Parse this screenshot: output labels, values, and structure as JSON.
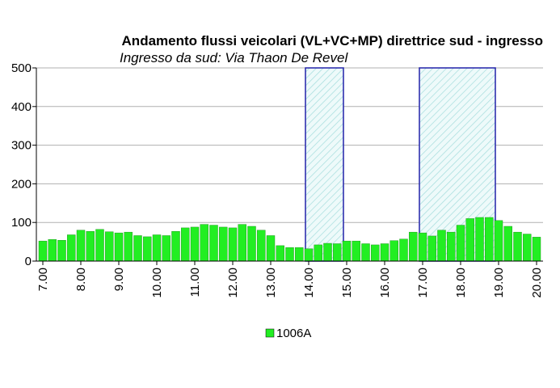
{
  "chart_data": {
    "type": "bar",
    "title": "Andamento flussi veicolari (VL+VC+MP) direttrice sud - ingresso",
    "subtitle": "Ingresso da sud: Via Thaon De Revel",
    "x": [
      7,
      7.25,
      7.5,
      7.75,
      8,
      8.25,
      8.5,
      8.75,
      9,
      9.25,
      9.5,
      9.75,
      10,
      10.25,
      10.5,
      10.75,
      11,
      11.25,
      11.5,
      11.75,
      12,
      12.25,
      12.5,
      12.75,
      13,
      13.25,
      13.5,
      13.75,
      14,
      14.25,
      14.5,
      14.75,
      15,
      15.25,
      15.5,
      15.75,
      16,
      16.25,
      16.5,
      16.75,
      17,
      17.25,
      17.5,
      17.75,
      18,
      18.25,
      18.5,
      18.75,
      19,
      19.25,
      19.5,
      19.75,
      20
    ],
    "series": [
      {
        "name": "1006A",
        "color": "#22ee22",
        "values": [
          52,
          56,
          54,
          68,
          80,
          77,
          82,
          76,
          73,
          75,
          66,
          63,
          68,
          66,
          77,
          86,
          88,
          95,
          93,
          88,
          86,
          95,
          90,
          80,
          66,
          40,
          35,
          35,
          32,
          42,
          46,
          45,
          52,
          52,
          45,
          42,
          45,
          53,
          57,
          75,
          73,
          65,
          80,
          75,
          93,
          110,
          113,
          113,
          105,
          90,
          75,
          70,
          62
        ]
      }
    ],
    "xlim": [
      7,
      20
    ],
    "xticks": [
      {
        "value": 7,
        "label": "7.00"
      },
      {
        "value": 8,
        "label": "8.00"
      },
      {
        "value": 9,
        "label": "9.00"
      },
      {
        "value": 10,
        "label": "10.00"
      },
      {
        "value": 11,
        "label": "11.00"
      },
      {
        "value": 12,
        "label": "12.00"
      },
      {
        "value": 13,
        "label": "13.00"
      },
      {
        "value": 14,
        "label": "14.00"
      },
      {
        "value": 15,
        "label": "15.00"
      },
      {
        "value": 16,
        "label": "16.00"
      },
      {
        "value": 17,
        "label": "17.00"
      },
      {
        "value": 18,
        "label": "18.00"
      },
      {
        "value": 19,
        "label": "19.00"
      },
      {
        "value": 20,
        "label": "20.00"
      }
    ],
    "ylim": [
      0,
      500
    ],
    "yticks": [
      0,
      100,
      200,
      300,
      400,
      500
    ],
    "grid": true,
    "highlights": [
      [
        14,
        15
      ],
      [
        17,
        19
      ]
    ],
    "highlight_color": "#2222aa"
  }
}
